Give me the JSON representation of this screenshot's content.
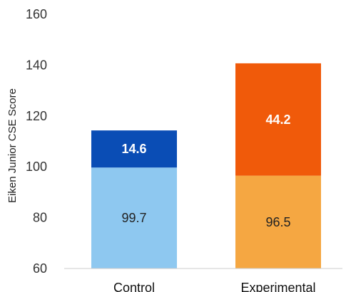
{
  "chart_data": {
    "type": "bar",
    "stacked": true,
    "categories": [
      "Control",
      "Experimental"
    ],
    "ylabel": "Eiken Junior CSE Score",
    "xlabel": "",
    "ylim": [
      60,
      160
    ],
    "yticks": [
      60,
      80,
      100,
      120,
      140,
      160
    ],
    "grid": false,
    "legend": "none",
    "bars": [
      {
        "category": "Control",
        "segments": [
          {
            "value": 99.7,
            "label": "99.7",
            "color": "#8ec8f0",
            "label_color": "#222222",
            "label_bold": false
          },
          {
            "value": 14.6,
            "label": "14.6",
            "color": "#0a4db5",
            "label_color": "#ffffff",
            "label_bold": true
          }
        ]
      },
      {
        "category": "Experimental",
        "segments": [
          {
            "value": 96.5,
            "label": "96.5",
            "color": "#f5a742",
            "label_color": "#222222",
            "label_bold": false
          },
          {
            "value": 44.2,
            "label": "44.2",
            "color": "#f05a0a",
            "label_color": "#ffffff",
            "label_bold": true
          }
        ]
      }
    ]
  }
}
